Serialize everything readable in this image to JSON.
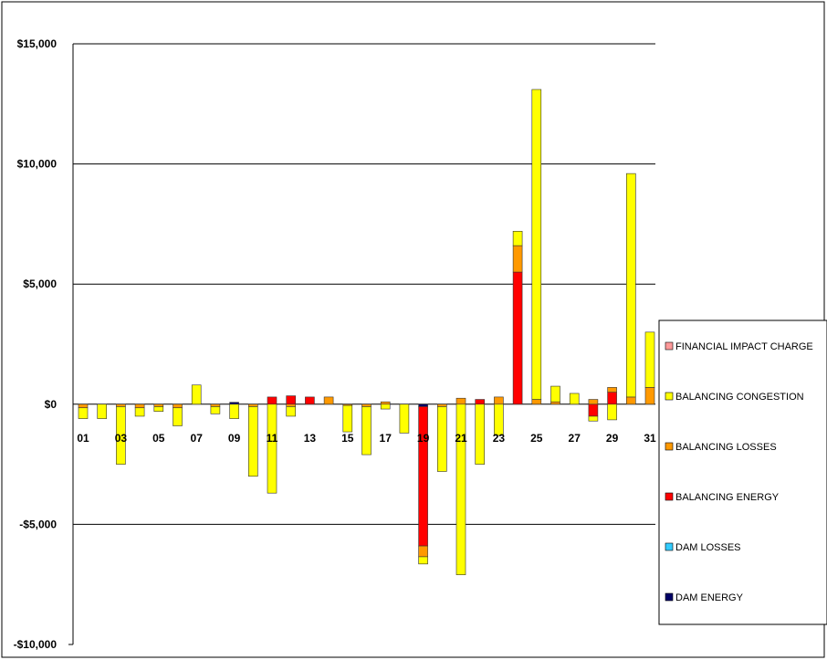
{
  "chart_data": {
    "type": "bar",
    "stacked": true,
    "title": "",
    "xlabel": "",
    "ylabel": "",
    "ylim": [
      -10000,
      15000
    ],
    "yticks": [
      15000,
      10000,
      5000,
      0,
      -5000,
      -10000
    ],
    "ytick_labels": [
      "$15,000",
      "$10,000",
      "$5,000",
      "$0",
      "-$5,000",
      "-$10,000"
    ],
    "categories": [
      "01",
      "02",
      "03",
      "04",
      "05",
      "06",
      "07",
      "08",
      "09",
      "10",
      "11",
      "12",
      "13",
      "14",
      "15",
      "16",
      "17",
      "18",
      "19",
      "20",
      "21",
      "22",
      "23",
      "24",
      "25",
      "26",
      "27",
      "28",
      "29",
      "30",
      "31"
    ],
    "xtick_labels": [
      "01",
      "",
      "03",
      "",
      "05",
      "",
      "07",
      "",
      "09",
      "",
      "11",
      "",
      "13",
      "",
      "15",
      "",
      "17",
      "",
      "19",
      "",
      "21",
      "",
      "23",
      "",
      "25",
      "",
      "27",
      "",
      "29",
      "",
      "31"
    ],
    "grid": "horizontal",
    "legend_position": "right",
    "series": [
      {
        "name": "DAM ENERGY",
        "color": "#000066",
        "values": [
          0,
          0,
          0,
          0,
          0,
          0,
          0,
          0,
          80,
          0,
          0,
          0,
          0,
          0,
          0,
          0,
          0,
          0,
          -100,
          0,
          0,
          0,
          0,
          0,
          0,
          0,
          0,
          0,
          0,
          0,
          0
        ]
      },
      {
        "name": "DAM LOSSES",
        "color": "#33CCFF",
        "values": [
          0,
          0,
          0,
          0,
          0,
          0,
          0,
          0,
          0,
          0,
          0,
          0,
          0,
          0,
          0,
          0,
          0,
          0,
          0,
          0,
          0,
          0,
          0,
          0,
          0,
          0,
          0,
          0,
          0,
          0,
          0
        ]
      },
      {
        "name": "BALANCING ENERGY",
        "color": "#FF0000",
        "values": [
          0,
          0,
          0,
          0,
          0,
          0,
          0,
          0,
          0,
          0,
          300,
          350,
          300,
          0,
          0,
          0,
          0,
          0,
          -5800,
          0,
          0,
          200,
          0,
          5500,
          0,
          0,
          0,
          -500,
          500,
          0,
          0
        ]
      },
      {
        "name": "BALANCING LOSSES",
        "color": "#FF9900",
        "values": [
          -150,
          0,
          -100,
          -150,
          -100,
          -150,
          0,
          -100,
          0,
          -100,
          0,
          -100,
          0,
          300,
          -50,
          -100,
          100,
          0,
          -450,
          -100,
          250,
          0,
          300,
          1100,
          200,
          100,
          0,
          200,
          200,
          300,
          700
        ]
      },
      {
        "name": "BALANCING CONGESTION",
        "color": "#FFFF00",
        "values": [
          -450,
          -600,
          -2400,
          -350,
          -200,
          -750,
          800,
          -300,
          -600,
          -2900,
          -3700,
          -400,
          0,
          0,
          -1100,
          -2000,
          -200,
          -1200,
          -300,
          -2700,
          -7100,
          -2500,
          -1300,
          600,
          12900,
          650,
          450,
          -200,
          -650,
          9300,
          2300
        ]
      },
      {
        "name": "FINANCIAL IMPACT CHARGE",
        "color": "#FF9999",
        "values": [
          0,
          0,
          0,
          0,
          0,
          0,
          0,
          0,
          0,
          0,
          0,
          0,
          0,
          0,
          0,
          0,
          0,
          0,
          0,
          0,
          0,
          0,
          0,
          0,
          0,
          0,
          0,
          0,
          0,
          0,
          0
        ]
      }
    ],
    "legend_order": [
      "FINANCIAL IMPACT CHARGE",
      "BALANCING CONGESTION",
      "BALANCING LOSSES",
      "BALANCING ENERGY",
      "DAM LOSSES",
      "DAM ENERGY"
    ]
  }
}
